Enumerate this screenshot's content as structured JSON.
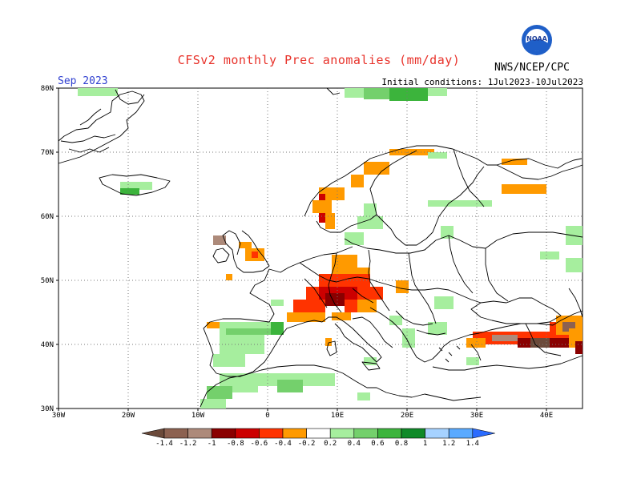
{
  "title": "CFSv2 monthly Prec anomalies (mm/day)",
  "valid_month": "Sep 2023",
  "initial_conditions": "Initial conditions: 1Jul2023-10Jul2023",
  "agency": "NWS/NCEP/CPC",
  "logo_text": "NOAA",
  "lat_labels": [
    "80N",
    "70N",
    "60N",
    "50N",
    "40N",
    "30N"
  ],
  "lon_labels": [
    "30W",
    "20W",
    "10W",
    "0",
    "10E",
    "20E",
    "30E",
    "40E"
  ],
  "legend": {
    "ticks": [
      "-1.4",
      "-1.2",
      "-1",
      "-0.8",
      "-0.6",
      "-0.4",
      "-0.2",
      "0.2",
      "0.4",
      "0.6",
      "0.8",
      "1",
      "1.2",
      "1.4"
    ],
    "colors": [
      "#6b4a3a",
      "#8c6150",
      "#ad8a7a",
      "#8a0000",
      "#cc0000",
      "#ff3300",
      "#ff9a00",
      "#ffffff",
      "#a6ee9e",
      "#74d06c",
      "#3cb43c",
      "#0f8a28",
      "#a6d2ff",
      "#5aaaff",
      "#2b6cff"
    ]
  }
}
